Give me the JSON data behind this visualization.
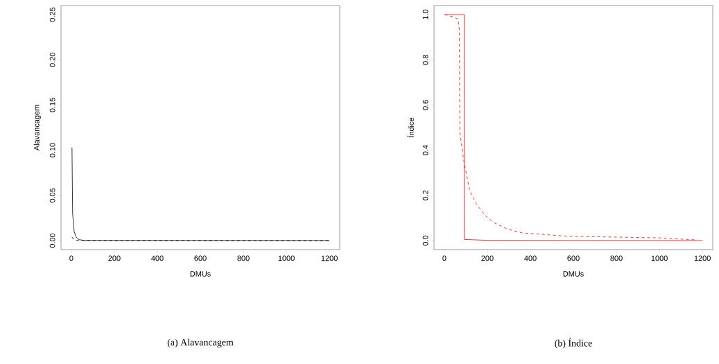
{
  "chart_data": [
    {
      "type": "line",
      "xlabel": "DMUs",
      "ylabel": "Alavancagem",
      "annotations": [
        "(a)  Alavancagem"
      ],
      "xlim": [
        -48,
        1248
      ],
      "ylim": [
        -0.01,
        0.26
      ],
      "xticks": [
        0,
        200,
        400,
        600,
        800,
        1000,
        1200
      ],
      "yticks": [
        {
          "value": 0,
          "label": "0.00"
        },
        {
          "value": 0.05,
          "label": "0.05"
        },
        {
          "value": 0.1,
          "label": "0.10"
        },
        {
          "value": 0.15,
          "label": "0.15"
        },
        {
          "value": 0.2,
          "label": "0.20"
        },
        {
          "value": 0.25,
          "label": "0.25"
        }
      ],
      "series": [
        {
          "color": "#000000",
          "line_style": "solid",
          "x": [
            3,
            6,
            13,
            22,
            35,
            60,
            1200
          ],
          "values": [
            0.103,
            0.03,
            0.01,
            0.004,
            0.001,
            0.0002,
            0
          ]
        },
        {
          "color": "#000000",
          "line_style": "dashed",
          "x": [
            3,
            10,
            20,
            40,
            1200
          ],
          "values": [
            0.004,
            0.0015,
            0.0005,
            0.0001,
            0
          ]
        }
      ]
    },
    {
      "type": "line",
      "xlabel": "DMUs",
      "ylabel": "Índice",
      "annotations": [
        "(b)  Índice"
      ],
      "xlim": [
        -48,
        1248
      ],
      "ylim": [
        -0.04,
        1.04
      ],
      "xticks": [
        0,
        200,
        400,
        600,
        800,
        1000,
        1200
      ],
      "yticks": [
        {
          "value": 0,
          "label": "0.0"
        },
        {
          "value": 0.2,
          "label": "0.2"
        },
        {
          "value": 0.4,
          "label": "0.4"
        },
        {
          "value": 0.6,
          "label": "0.6"
        },
        {
          "value": 0.8,
          "label": "0.8"
        },
        {
          "value": 1,
          "label": "1.0"
        }
      ],
      "series": [
        {
          "color": "#ff0000",
          "line_style": "solid",
          "x": [
            1,
            93,
            93,
            200,
            1200
          ],
          "values": [
            1,
            1,
            0.005,
            0.001,
            0
          ]
        },
        {
          "color": "#ff0000",
          "line_style": "dashed",
          "x": [
            2,
            40,
            64,
            70,
            72,
            89,
            118,
            150,
            191,
            232,
            296,
            360,
            573,
            997,
            1169
          ],
          "values": [
            1,
            0.99,
            0.98,
            0.93,
            0.48,
            0.36,
            0.22,
            0.16,
            0.11,
            0.078,
            0.05,
            0.034,
            0.019,
            0.012,
            0.003
          ]
        }
      ]
    }
  ]
}
